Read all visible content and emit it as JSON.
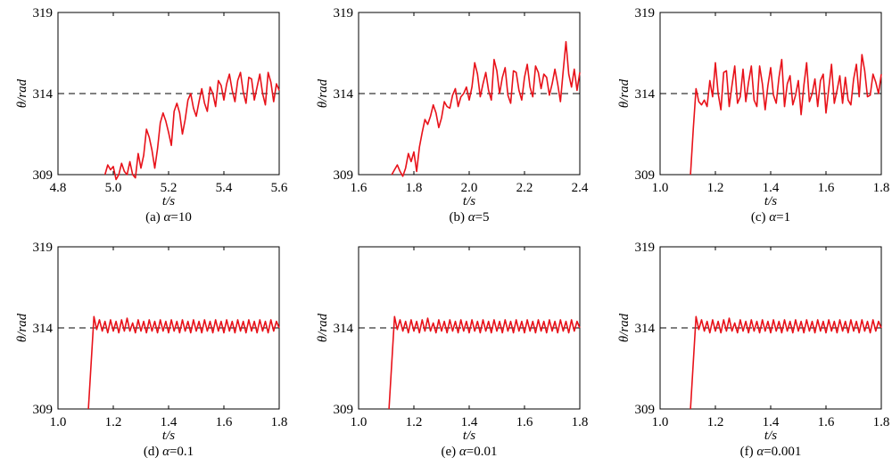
{
  "chart_data": [
    {
      "type": "line",
      "caption": "(a) α=10",
      "caption_prefix": "(a) ",
      "caption_symbol": "α",
      "caption_value": "=10",
      "xlabel": "t/s",
      "ylabel": "θ/rad",
      "xlim": [
        4.8,
        5.6
      ],
      "ylim": [
        309,
        319
      ],
      "xticks": [
        "4.8",
        "5.0",
        "5.2",
        "5.4",
        "5.6"
      ],
      "yticks": [
        "309",
        "314",
        "319"
      ],
      "reference_line": 314,
      "series": [
        {
          "color": "#e8121a",
          "x": [
            4.97,
            4.98,
            4.99,
            5.0,
            5.01,
            5.02,
            5.03,
            5.04,
            5.05,
            5.06,
            5.07,
            5.08,
            5.09,
            5.1,
            5.11,
            5.12,
            5.13,
            5.14,
            5.15,
            5.16,
            5.17,
            5.18,
            5.19,
            5.2,
            5.21,
            5.22,
            5.23,
            5.24,
            5.25,
            5.26,
            5.27,
            5.28,
            5.29,
            5.3,
            5.31,
            5.32,
            5.33,
            5.34,
            5.35,
            5.36,
            5.37,
            5.38,
            5.39,
            5.4,
            5.41,
            5.42,
            5.43,
            5.44,
            5.45,
            5.46,
            5.47,
            5.48,
            5.49,
            5.5,
            5.51,
            5.52,
            5.53,
            5.54,
            5.55,
            5.56,
            5.57,
            5.58,
            5.59,
            5.6
          ],
          "y": [
            309.0,
            309.6,
            309.3,
            309.5,
            308.7,
            309.0,
            309.7,
            309.2,
            309.0,
            309.8,
            309.0,
            308.8,
            310.3,
            309.4,
            310.2,
            311.8,
            311.3,
            310.5,
            309.4,
            310.6,
            312.2,
            312.8,
            312.3,
            311.6,
            310.8,
            312.9,
            313.4,
            312.8,
            311.5,
            312.4,
            313.6,
            314.0,
            313.1,
            312.6,
            313.5,
            314.3,
            313.4,
            312.9,
            314.4,
            314.0,
            313.2,
            314.8,
            314.5,
            313.6,
            314.6,
            315.2,
            314.2,
            313.5,
            314.8,
            315.3,
            314.1,
            313.4,
            315.0,
            314.9,
            313.6,
            314.4,
            315.2,
            314.0,
            313.3,
            315.3,
            314.7,
            313.5,
            314.6,
            314.2
          ]
        }
      ]
    },
    {
      "type": "line",
      "caption": "(b) α=5",
      "caption_prefix": "(b) ",
      "caption_symbol": "α",
      "caption_value": "=5",
      "xlabel": "t/s",
      "ylabel": "θ/rad",
      "xlim": [
        1.6,
        2.4
      ],
      "ylim": [
        309,
        319
      ],
      "xticks": [
        "1.6",
        "1.8",
        "2.0",
        "2.2",
        "2.4"
      ],
      "yticks": [
        "309",
        "314",
        "319"
      ],
      "reference_line": 314,
      "series": [
        {
          "color": "#e8121a",
          "x": [
            1.72,
            1.73,
            1.74,
            1.75,
            1.76,
            1.77,
            1.78,
            1.79,
            1.8,
            1.81,
            1.82,
            1.83,
            1.84,
            1.85,
            1.86,
            1.87,
            1.88,
            1.89,
            1.9,
            1.91,
            1.92,
            1.93,
            1.94,
            1.95,
            1.96,
            1.97,
            1.98,
            1.99,
            2.0,
            2.01,
            2.02,
            2.03,
            2.04,
            2.05,
            2.06,
            2.07,
            2.08,
            2.09,
            2.1,
            2.11,
            2.12,
            2.13,
            2.14,
            2.15,
            2.16,
            2.17,
            2.18,
            2.19,
            2.2,
            2.21,
            2.22,
            2.23,
            2.24,
            2.25,
            2.26,
            2.27,
            2.28,
            2.29,
            2.3,
            2.31,
            2.32,
            2.33,
            2.34,
            2.35,
            2.36,
            2.37,
            2.38,
            2.39,
            2.4
          ],
          "y": [
            309.0,
            309.3,
            309.6,
            309.2,
            308.9,
            309.4,
            310.3,
            309.8,
            310.4,
            309.2,
            310.7,
            311.6,
            312.4,
            312.1,
            312.6,
            313.3,
            312.8,
            311.9,
            312.5,
            313.5,
            313.2,
            313.1,
            313.9,
            314.3,
            313.2,
            313.8,
            314.0,
            314.4,
            313.6,
            314.4,
            315.9,
            315.2,
            313.8,
            314.6,
            315.3,
            314.2,
            313.6,
            316.1,
            315.4,
            314.0,
            315.0,
            315.6,
            313.9,
            313.4,
            315.4,
            315.3,
            314.2,
            313.6,
            315.0,
            315.8,
            314.4,
            313.8,
            315.7,
            315.3,
            314.3,
            315.2,
            315.0,
            313.9,
            314.6,
            315.5,
            314.6,
            313.5,
            315.4,
            317.2,
            315.2,
            314.4,
            315.5,
            314.2,
            315.3
          ]
        }
      ]
    },
    {
      "type": "line",
      "caption": "(c) α=1",
      "caption_prefix": "(c) ",
      "caption_symbol": "α",
      "caption_value": "=1",
      "xlabel": "t/s",
      "ylabel": "θ/rad",
      "xlim": [
        1.0,
        1.8
      ],
      "ylim": [
        309,
        319
      ],
      "xticks": [
        "1.0",
        "1.2",
        "1.4",
        "1.6",
        "1.8"
      ],
      "yticks": [
        "309",
        "314",
        "319"
      ],
      "reference_line": 314,
      "series": [
        {
          "color": "#e8121a",
          "x": [
            1.11,
            1.12,
            1.13,
            1.14,
            1.15,
            1.16,
            1.17,
            1.18,
            1.19,
            1.2,
            1.21,
            1.22,
            1.23,
            1.24,
            1.25,
            1.26,
            1.27,
            1.28,
            1.29,
            1.3,
            1.31,
            1.32,
            1.33,
            1.34,
            1.35,
            1.36,
            1.37,
            1.38,
            1.39,
            1.4,
            1.41,
            1.42,
            1.43,
            1.44,
            1.45,
            1.46,
            1.47,
            1.48,
            1.49,
            1.5,
            1.51,
            1.52,
            1.53,
            1.54,
            1.55,
            1.56,
            1.57,
            1.58,
            1.59,
            1.6,
            1.61,
            1.62,
            1.63,
            1.64,
            1.65,
            1.66,
            1.67,
            1.68,
            1.69,
            1.7,
            1.71,
            1.72,
            1.73,
            1.74,
            1.75,
            1.76,
            1.77,
            1.78,
            1.79,
            1.8
          ],
          "y": [
            309.0,
            311.8,
            314.3,
            313.5,
            313.3,
            313.6,
            313.2,
            314.8,
            313.8,
            315.9,
            314.0,
            313.0,
            315.3,
            315.4,
            313.2,
            314.5,
            315.7,
            313.4,
            313.8,
            315.5,
            313.5,
            314.7,
            315.7,
            313.6,
            313.2,
            315.7,
            314.6,
            313.0,
            314.5,
            315.6,
            313.9,
            313.4,
            315.0,
            316.1,
            313.2,
            314.6,
            315.1,
            313.3,
            313.9,
            314.8,
            312.7,
            314.5,
            315.9,
            313.5,
            314.0,
            314.9,
            313.2,
            314.8,
            315.2,
            312.8,
            314.3,
            315.8,
            313.4,
            314.2,
            315.1,
            313.4,
            315.0,
            313.6,
            313.3,
            314.9,
            315.8,
            313.8,
            316.4,
            315.4,
            313.8,
            313.9,
            315.2,
            314.7,
            314.0,
            315.2
          ]
        }
      ]
    },
    {
      "type": "line",
      "caption": "(d) α=0.1",
      "caption_prefix": "(d) ",
      "caption_symbol": "α",
      "caption_value": "=0.1",
      "xlabel": "t/s",
      "ylabel": "θ/rad",
      "xlim": [
        1.0,
        1.8
      ],
      "ylim": [
        309,
        319
      ],
      "xticks": [
        "1.0",
        "1.2",
        "1.4",
        "1.6",
        "1.8"
      ],
      "yticks": [
        "309",
        "314",
        "319"
      ],
      "reference_line": 314,
      "series": [
        {
          "color": "#e8121a",
          "x": [
            1.11,
            1.13,
            1.14,
            1.15,
            1.16,
            1.17,
            1.18,
            1.19,
            1.2,
            1.21,
            1.22,
            1.23,
            1.24,
            1.25,
            1.26,
            1.27,
            1.28,
            1.29,
            1.3,
            1.31,
            1.32,
            1.33,
            1.34,
            1.35,
            1.36,
            1.37,
            1.38,
            1.39,
            1.4,
            1.41,
            1.42,
            1.43,
            1.44,
            1.45,
            1.46,
            1.47,
            1.48,
            1.49,
            1.5,
            1.51,
            1.52,
            1.53,
            1.54,
            1.55,
            1.56,
            1.57,
            1.58,
            1.59,
            1.6,
            1.61,
            1.62,
            1.63,
            1.64,
            1.65,
            1.66,
            1.67,
            1.68,
            1.69,
            1.7,
            1.71,
            1.72,
            1.73,
            1.74,
            1.75,
            1.76,
            1.77,
            1.78,
            1.79,
            1.8
          ],
          "y": [
            309.0,
            314.7,
            313.9,
            314.5,
            313.8,
            314.4,
            313.7,
            314.5,
            313.8,
            314.4,
            313.7,
            314.5,
            313.8,
            314.6,
            313.8,
            314.3,
            313.7,
            314.5,
            313.8,
            314.4,
            313.7,
            314.5,
            313.8,
            314.4,
            313.7,
            314.5,
            313.8,
            314.4,
            313.7,
            314.5,
            313.8,
            314.4,
            313.7,
            314.5,
            313.8,
            314.4,
            313.7,
            314.5,
            313.8,
            314.4,
            313.7,
            314.5,
            313.8,
            314.4,
            313.7,
            314.5,
            313.8,
            314.4,
            313.7,
            314.5,
            313.8,
            314.4,
            313.7,
            314.5,
            313.8,
            314.4,
            313.7,
            314.5,
            313.8,
            314.4,
            313.7,
            314.5,
            313.8,
            314.4,
            313.7,
            314.5,
            313.8,
            314.4,
            314.0
          ]
        }
      ]
    },
    {
      "type": "line",
      "caption": "(e) α=0.01",
      "caption_prefix": "(e) ",
      "caption_symbol": "α",
      "caption_value": "=0.01",
      "xlabel": "t/s",
      "ylabel": "θ/rad",
      "xlim": [
        1.0,
        1.8
      ],
      "ylim": [
        309,
        319
      ],
      "xticks": [
        "1.0",
        "1.2",
        "1.4",
        "1.6",
        "1.8"
      ],
      "yticks": [
        "309",
        "314"
      ],
      "reference_line": 314,
      "series": [
        {
          "color": "#e8121a",
          "x": [
            1.11,
            1.13,
            1.14,
            1.15,
            1.16,
            1.17,
            1.18,
            1.19,
            1.2,
            1.21,
            1.22,
            1.23,
            1.24,
            1.25,
            1.26,
            1.27,
            1.28,
            1.29,
            1.3,
            1.31,
            1.32,
            1.33,
            1.34,
            1.35,
            1.36,
            1.37,
            1.38,
            1.39,
            1.4,
            1.41,
            1.42,
            1.43,
            1.44,
            1.45,
            1.46,
            1.47,
            1.48,
            1.49,
            1.5,
            1.51,
            1.52,
            1.53,
            1.54,
            1.55,
            1.56,
            1.57,
            1.58,
            1.59,
            1.6,
            1.61,
            1.62,
            1.63,
            1.64,
            1.65,
            1.66,
            1.67,
            1.68,
            1.69,
            1.7,
            1.71,
            1.72,
            1.73,
            1.74,
            1.75,
            1.76,
            1.77,
            1.78,
            1.79,
            1.8
          ],
          "y": [
            309.0,
            314.7,
            313.9,
            314.5,
            313.8,
            314.4,
            313.7,
            314.5,
            313.8,
            314.4,
            313.7,
            314.5,
            313.8,
            314.6,
            313.8,
            314.3,
            313.7,
            314.5,
            313.8,
            314.4,
            313.7,
            314.5,
            313.8,
            314.4,
            313.7,
            314.5,
            313.8,
            314.4,
            313.7,
            314.5,
            313.8,
            314.4,
            313.7,
            314.5,
            313.8,
            314.4,
            313.7,
            314.5,
            313.8,
            314.4,
            313.7,
            314.5,
            313.8,
            314.4,
            313.7,
            314.5,
            313.8,
            314.4,
            313.7,
            314.5,
            313.8,
            314.4,
            313.7,
            314.5,
            313.8,
            314.4,
            313.7,
            314.5,
            313.8,
            314.4,
            313.7,
            314.5,
            313.8,
            314.4,
            313.7,
            314.5,
            313.8,
            314.4,
            314.0
          ]
        }
      ]
    },
    {
      "type": "line",
      "caption": "(f) α=0.001",
      "caption_prefix": "(f) ",
      "caption_symbol": "α",
      "caption_value": "=0.001",
      "xlabel": "t/s",
      "ylabel": "θ/rad",
      "xlim": [
        1.0,
        1.8
      ],
      "ylim": [
        309,
        319
      ],
      "xticks": [
        "1.0",
        "1.2",
        "1.4",
        "1.6",
        "1.8"
      ],
      "yticks": [
        "309",
        "314",
        "319"
      ],
      "reference_line": 314,
      "series": [
        {
          "color": "#e8121a",
          "x": [
            1.11,
            1.13,
            1.14,
            1.15,
            1.16,
            1.17,
            1.18,
            1.19,
            1.2,
            1.21,
            1.22,
            1.23,
            1.24,
            1.25,
            1.26,
            1.27,
            1.28,
            1.29,
            1.3,
            1.31,
            1.32,
            1.33,
            1.34,
            1.35,
            1.36,
            1.37,
            1.38,
            1.39,
            1.4,
            1.41,
            1.42,
            1.43,
            1.44,
            1.45,
            1.46,
            1.47,
            1.48,
            1.49,
            1.5,
            1.51,
            1.52,
            1.53,
            1.54,
            1.55,
            1.56,
            1.57,
            1.58,
            1.59,
            1.6,
            1.61,
            1.62,
            1.63,
            1.64,
            1.65,
            1.66,
            1.67,
            1.68,
            1.69,
            1.7,
            1.71,
            1.72,
            1.73,
            1.74,
            1.75,
            1.76,
            1.77,
            1.78,
            1.79,
            1.8
          ],
          "y": [
            309.0,
            314.7,
            313.9,
            314.5,
            313.8,
            314.4,
            313.7,
            314.5,
            313.8,
            314.4,
            313.7,
            314.5,
            313.8,
            314.6,
            313.8,
            314.3,
            313.7,
            314.5,
            313.8,
            314.4,
            313.7,
            314.5,
            313.8,
            314.4,
            313.7,
            314.5,
            313.8,
            314.4,
            313.7,
            314.5,
            313.8,
            314.4,
            313.7,
            314.5,
            313.8,
            314.4,
            313.7,
            314.5,
            313.8,
            314.4,
            313.7,
            314.5,
            313.8,
            314.4,
            313.7,
            314.5,
            313.8,
            314.4,
            313.7,
            314.5,
            313.8,
            314.4,
            313.7,
            314.5,
            313.8,
            314.4,
            313.7,
            314.5,
            313.8,
            314.4,
            313.7,
            314.5,
            313.8,
            314.4,
            313.7,
            314.5,
            313.8,
            314.4,
            314.0
          ]
        }
      ]
    }
  ]
}
